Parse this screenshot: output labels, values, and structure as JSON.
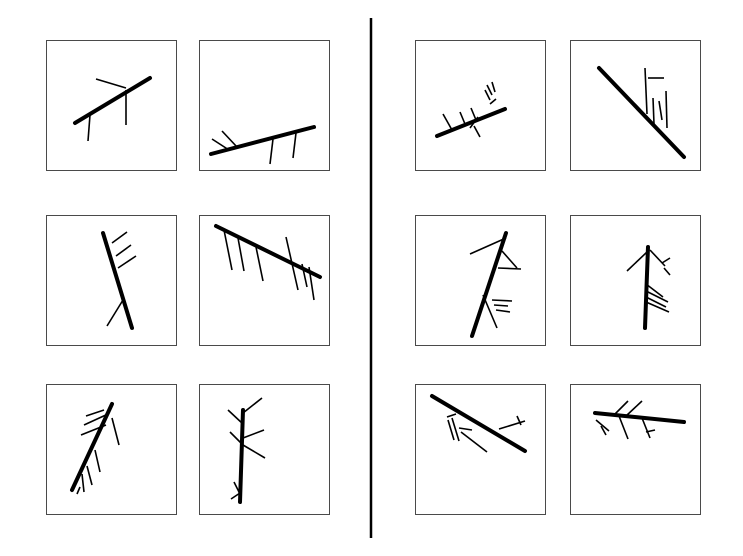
{
  "figure": {
    "colors": {
      "background": "#ffffff",
      "frame": "#4a4a4a",
      "ink": "#000000"
    },
    "groups": [
      {
        "name": "left-group",
        "panel_count": 6
      },
      {
        "name": "right-group",
        "panel_count": 6
      }
    ]
  }
}
